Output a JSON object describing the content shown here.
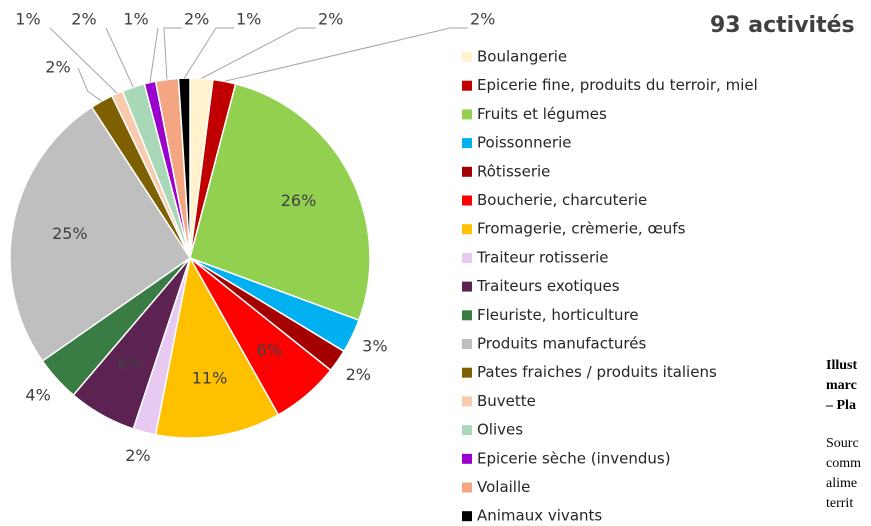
{
  "chart_data": {
    "type": "pie",
    "title": "93 activités",
    "categories": [
      "Boulangerie",
      "Epicerie fine, produits du terroir, miel",
      "Fruits et légumes",
      "Poissonnerie",
      "Rôtisserie",
      "Boucherie, charcuterie",
      "Fromagerie, crèmerie, œufs",
      "Traiteur rotisserie",
      "Traiteurs exotiques",
      "Fleuriste, horticulture",
      "Produits manufacturés",
      "Pates fraiches / produits italiens",
      "Buvette",
      "Olives",
      "Epicerie sèche (invendus)",
      "Volaille",
      "Animaux vivants"
    ],
    "values": [
      2,
      2,
      26,
      3,
      2,
      6,
      11,
      2,
      6,
      4,
      25,
      2,
      1,
      2,
      1,
      2,
      1
    ],
    "value_labels": [
      "2%",
      "2%",
      "26%",
      "3%",
      "2%",
      "6%",
      "11%",
      "2%",
      "6%",
      "4%",
      "25%",
      "2%",
      "1%",
      "2%",
      "1%",
      "2%",
      "1%"
    ],
    "colors": [
      "#fff2cc",
      "#c00000",
      "#92d050",
      "#00b0f0",
      "#a50000",
      "#ff0000",
      "#ffc000",
      "#e8c9f2",
      "#5b2252",
      "#3a7d44",
      "#bfbfbf",
      "#7f6000",
      "#f8cbad",
      "#a9d8b8",
      "#9900cc",
      "#f4a582",
      "#000000"
    ],
    "legend": "right"
  },
  "caption": {
    "title": [
      "Illust",
      "marc",
      "– Pla"
    ],
    "text": [
      "Sourc",
      "comm",
      "alime",
      "territ"
    ]
  }
}
